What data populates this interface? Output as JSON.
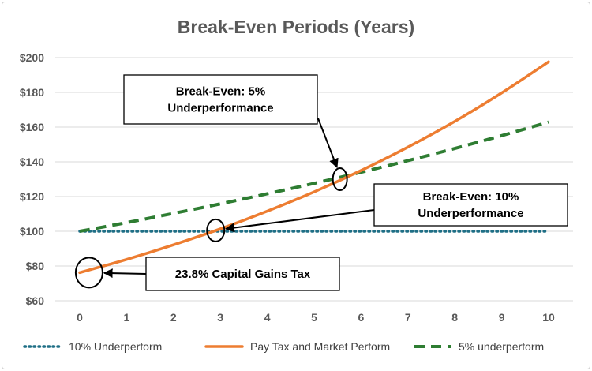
{
  "chart_data": {
    "type": "line",
    "title": "Break-Even Periods (Years)",
    "xlabel": "",
    "ylabel": "",
    "xlim": [
      0,
      10
    ],
    "ylim": [
      60,
      200
    ],
    "x_ticks": [
      "0",
      "1",
      "2",
      "3",
      "4",
      "5",
      "6",
      "7",
      "8",
      "9",
      "10"
    ],
    "y_ticks": [
      "$60",
      "$80",
      "$100",
      "$120",
      "$140",
      "$160",
      "$180",
      "$200"
    ],
    "y_tick_values": [
      60,
      80,
      100,
      120,
      140,
      160,
      180,
      200
    ],
    "grid": "horizontal",
    "legend_position": "bottom",
    "x": [
      0,
      1,
      2,
      3,
      4,
      5,
      6,
      7,
      8,
      9,
      10
    ],
    "series": [
      {
        "name": "10% Underperform",
        "style": "dotted",
        "color": "#1f6f86",
        "values": [
          100,
          100,
          100,
          100,
          100,
          100,
          100,
          100,
          100,
          100,
          100
        ]
      },
      {
        "name": "Pay Tax and Market Perform",
        "style": "solid",
        "color": "#ed7d31",
        "values": [
          76.2,
          83.8,
          92.2,
          101.4,
          111.6,
          122.7,
          135.0,
          148.5,
          163.3,
          179.7,
          197.6
        ]
      },
      {
        "name": "5% underperform",
        "style": "dashed",
        "color": "#2e7d32",
        "values": [
          100,
          105,
          110.3,
          115.8,
          121.6,
          127.6,
          134.0,
          140.7,
          147.7,
          155.1,
          162.9
        ]
      }
    ],
    "annotations": [
      {
        "text_lines": [
          "Break-Even: 5%",
          "Underperformance"
        ],
        "target_x": 5.55,
        "target_y": 130
      },
      {
        "text_lines": [
          "Break-Even: 10%",
          "Underperformance"
        ],
        "target_x": 2.9,
        "target_y": 100.5
      },
      {
        "text_lines": [
          "23.8% Capital Gains Tax"
        ],
        "target_x": 0.2,
        "target_y": 76.2
      }
    ]
  }
}
